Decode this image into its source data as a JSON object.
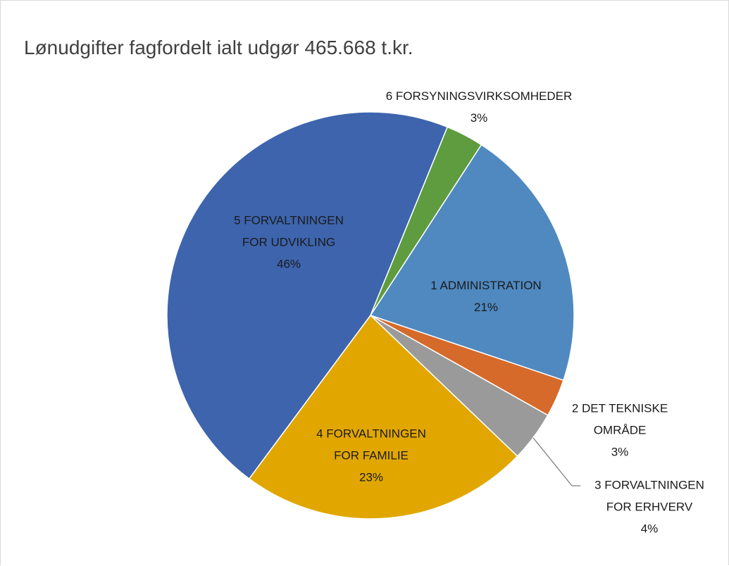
{
  "chart_data": {
    "type": "pie",
    "title": "Lønudgifter fagfordelt ialt udgør 465.668 t.kr.",
    "categories": [
      "1 ADMINISTRATION",
      "2 DET TEKNISKE OMRÅDE",
      "3 FORVALTNINGEN FOR ERHVERV",
      "4 FORVALTNINGEN FOR FAMILIE",
      "5 FORVALTNINGEN FOR UDVIKLING",
      "6 FORSYNINGSVIRKSOMHEDER"
    ],
    "values": [
      21,
      3,
      4,
      23,
      46,
      3
    ],
    "value_labels": [
      "21%",
      "3%",
      "4%",
      "23%",
      "46%",
      "3%"
    ],
    "colors": [
      "#4f89c0",
      "#d56a2a",
      "#9a9a9a",
      "#e1a700",
      "#3d64ad",
      "#5e9c3f"
    ]
  }
}
